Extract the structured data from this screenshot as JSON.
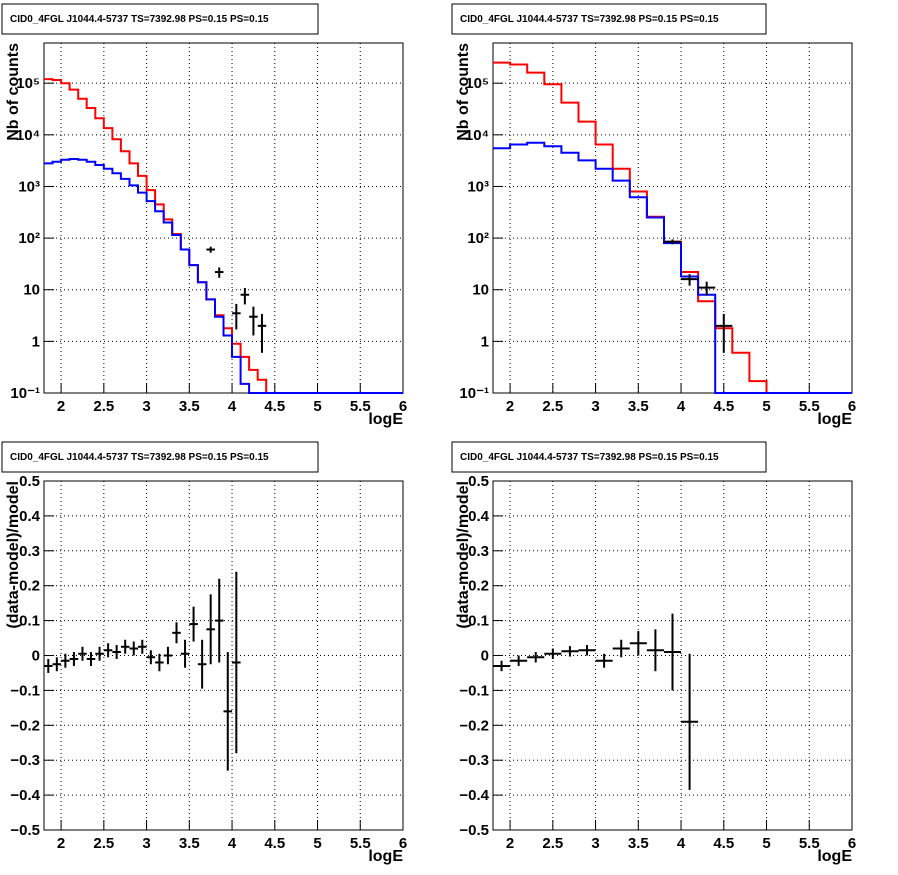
{
  "panel_title": "CID0_4FGL J1044.4-5737 TS=7392.98 PS=0.15 PS=0.15",
  "colors": {
    "model_total": "#ff0000",
    "model_source": "#0000ff",
    "data": "#000000",
    "grid": "#000000"
  },
  "chart_data": [
    {
      "type": "line",
      "title": "CID0_4FGL J1044.4-5737 TS=7392.98 PS=0.15 PS=0.15",
      "xlabel": "logE",
      "ylabel": "Nb of counts",
      "xlim": [
        1.8,
        6
      ],
      "ylim": [
        0.1,
        600000
      ],
      "yscale": "log",
      "grid": true,
      "xticks": [
        2,
        2.5,
        3,
        3.5,
        4,
        4.5,
        5,
        5.5,
        6
      ],
      "xtick_labels": [
        "2",
        "2.5",
        "3",
        "3.5",
        "4",
        "4.5",
        "5",
        "5.5",
        "6"
      ],
      "yticks": [
        0.1,
        1,
        10,
        100,
        1000,
        10000,
        100000
      ],
      "ytick_labels": [
        "10⁻¹",
        "1",
        "10",
        "10²",
        "10³",
        "10⁴",
        "10⁵"
      ],
      "bin_edges": [
        1.8,
        1.9,
        2.0,
        2.1,
        2.2,
        2.3,
        2.4,
        2.5,
        2.6,
        2.7,
        2.8,
        2.9,
        3.0,
        3.1,
        3.2,
        3.3,
        3.4,
        3.5,
        3.6,
        3.7,
        3.8,
        3.9,
        4.0,
        4.1,
        4.2,
        4.3,
        4.4,
        4.5,
        4.6,
        4.7,
        4.8,
        4.9,
        5.0,
        6.0
      ],
      "series": [
        {
          "color": "#ff0000",
          "kind": "step",
          "values": [
            120000,
            115000,
            100000,
            75000,
            50000,
            33000,
            21000,
            13500,
            8200,
            4800,
            2800,
            1600,
            850,
            450,
            230,
            120,
            60,
            30,
            14,
            6.5,
            3.2,
            1.8,
            0.9,
            0.5,
            0.28,
            0.18,
            0.1,
            0.1,
            0.1,
            0.1,
            0.1,
            0.1,
            0.1
          ]
        },
        {
          "color": "#0000ff",
          "kind": "step",
          "values": [
            2800,
            3000,
            3300,
            3400,
            3300,
            3000,
            2600,
            2200,
            1800,
            1400,
            1050,
            760,
            520,
            330,
            200,
            115,
            60,
            30,
            14,
            6.5,
            3.0,
            1.3,
            0.5,
            0.15,
            0.1,
            0.1,
            0.1,
            0.1,
            0.1,
            0.1,
            0.1,
            0.1,
            0.1
          ]
        }
      ],
      "points": [
        {
          "x": 3.75,
          "xerr": 0.05,
          "y": 60,
          "yerr": 8
        },
        {
          "x": 3.85,
          "xerr": 0.05,
          "y": 22,
          "yerr": 5
        },
        {
          "x": 4.05,
          "xerr": 0.05,
          "y": 3.5,
          "yerr": 1.8
        },
        {
          "x": 4.15,
          "xerr": 0.05,
          "y": 8,
          "yerr": 2.8
        },
        {
          "x": 4.25,
          "xerr": 0.05,
          "y": 3,
          "yerr": 1.7
        },
        {
          "x": 4.35,
          "xerr": 0.05,
          "y": 2,
          "yerr": 1.4
        }
      ]
    },
    {
      "type": "line",
      "title": "CID0_4FGL J1044.4-5737 TS=7392.98 PS=0.15 PS=0.15",
      "xlabel": "logE",
      "ylabel": "Nb of counts",
      "xlim": [
        1.8,
        6
      ],
      "ylim": [
        0.1,
        600000
      ],
      "yscale": "log",
      "grid": true,
      "xticks": [
        2,
        2.5,
        3,
        3.5,
        4,
        4.5,
        5,
        5.5,
        6
      ],
      "xtick_labels": [
        "2",
        "2.5",
        "3",
        "3.5",
        "4",
        "4.5",
        "5",
        "5.5",
        "6"
      ],
      "yticks": [
        0.1,
        1,
        10,
        100,
        1000,
        10000,
        100000
      ],
      "ytick_labels": [
        "10⁻¹",
        "1",
        "10",
        "10²",
        "10³",
        "10⁴",
        "10⁵"
      ],
      "bin_edges": [
        1.8,
        2.0,
        2.2,
        2.4,
        2.6,
        2.8,
        3.0,
        3.2,
        3.4,
        3.6,
        3.8,
        4.0,
        4.2,
        4.4,
        4.6,
        4.8,
        5.0,
        6.0
      ],
      "series": [
        {
          "color": "#ff0000",
          "kind": "step",
          "values": [
            250000,
            230000,
            160000,
            95000,
            42000,
            18000,
            6500,
            2200,
            800,
            260,
            85,
            22,
            6,
            1.8,
            0.6,
            0.17,
            0.1
          ]
        },
        {
          "color": "#0000ff",
          "kind": "step",
          "values": [
            5500,
            6500,
            7000,
            6000,
            4500,
            3200,
            2200,
            1300,
            620,
            250,
            80,
            18,
            8,
            0.1,
            0.1,
            0.1,
            0.1
          ]
        }
      ],
      "points": [
        {
          "x": 3.9,
          "xerr": 0.1,
          "y": 85,
          "yerr": 9
        },
        {
          "x": 4.1,
          "xerr": 0.1,
          "y": 16,
          "yerr": 4
        },
        {
          "x": 4.3,
          "xerr": 0.1,
          "y": 11,
          "yerr": 3.3
        },
        {
          "x": 4.5,
          "xerr": 0.1,
          "y": 2,
          "yerr": 1.4
        }
      ]
    },
    {
      "type": "scatter",
      "title": "CID0_4FGL J1044.4-5737 TS=7392.98 PS=0.15 PS=0.15",
      "xlabel": "logE",
      "ylabel": "(data-model)/model",
      "xlim": [
        1.8,
        6
      ],
      "ylim": [
        -0.5,
        0.5
      ],
      "grid": true,
      "xticks": [
        2,
        2.5,
        3,
        3.5,
        4,
        4.5,
        5,
        5.5,
        6
      ],
      "xtick_labels": [
        "2",
        "2.5",
        "3",
        "3.5",
        "4",
        "4.5",
        "5",
        "5.5",
        "6"
      ],
      "yticks": [
        -0.5,
        -0.4,
        -0.3,
        -0.2,
        -0.1,
        0,
        0.1,
        0.2,
        0.3,
        0.4,
        0.5
      ],
      "ytick_labels": [
        "−0.5",
        "−0.4",
        "−0.3",
        "−0.2",
        "−0.1",
        "0",
        "0.1",
        "0.2",
        "0.3",
        "0.4",
        "0.5"
      ],
      "points": [
        {
          "x": 1.85,
          "xerr": 0.05,
          "y": -0.03,
          "yerr": 0.02
        },
        {
          "x": 1.95,
          "xerr": 0.05,
          "y": -0.025,
          "yerr": 0.02
        },
        {
          "x": 2.05,
          "xerr": 0.05,
          "y": -0.015,
          "yerr": 0.02
        },
        {
          "x": 2.15,
          "xerr": 0.05,
          "y": -0.01,
          "yerr": 0.02
        },
        {
          "x": 2.25,
          "xerr": 0.05,
          "y": 0.005,
          "yerr": 0.02
        },
        {
          "x": 2.35,
          "xerr": 0.05,
          "y": -0.01,
          "yerr": 0.02
        },
        {
          "x": 2.45,
          "xerr": 0.05,
          "y": 0.005,
          "yerr": 0.02
        },
        {
          "x": 2.55,
          "xerr": 0.05,
          "y": 0.015,
          "yerr": 0.02
        },
        {
          "x": 2.65,
          "xerr": 0.05,
          "y": 0.01,
          "yerr": 0.02
        },
        {
          "x": 2.75,
          "xerr": 0.05,
          "y": 0.025,
          "yerr": 0.02
        },
        {
          "x": 2.85,
          "xerr": 0.05,
          "y": 0.02,
          "yerr": 0.02
        },
        {
          "x": 2.95,
          "xerr": 0.05,
          "y": 0.025,
          "yerr": 0.02
        },
        {
          "x": 3.05,
          "xerr": 0.05,
          "y": -0.005,
          "yerr": 0.02
        },
        {
          "x": 3.15,
          "xerr": 0.05,
          "y": -0.02,
          "yerr": 0.025
        },
        {
          "x": 3.25,
          "xerr": 0.05,
          "y": 0,
          "yerr": 0.025
        },
        {
          "x": 3.35,
          "xerr": 0.05,
          "y": 0.065,
          "yerr": 0.03
        },
        {
          "x": 3.45,
          "xerr": 0.05,
          "y": 0.005,
          "yerr": 0.04
        },
        {
          "x": 3.55,
          "xerr": 0.05,
          "y": 0.09,
          "yerr": 0.05
        },
        {
          "x": 3.65,
          "xerr": 0.05,
          "y": -0.025,
          "yerr": 0.07
        },
        {
          "x": 3.75,
          "xerr": 0.05,
          "y": 0.075,
          "yerr": 0.1
        },
        {
          "x": 3.85,
          "xerr": 0.05,
          "y": 0.1,
          "yerr": 0.12
        },
        {
          "x": 3.95,
          "xerr": 0.05,
          "y": -0.16,
          "yerr": 0.17
        },
        {
          "x": 4.05,
          "xerr": 0.05,
          "y": -0.02,
          "yerr": 0.26
        }
      ]
    },
    {
      "type": "scatter",
      "title": "CID0_4FGL J1044.4-5737 TS=7392.98 PS=0.15 PS=0.15",
      "xlabel": "logE",
      "ylabel": "(data-model)/model",
      "xlim": [
        1.8,
        6
      ],
      "ylim": [
        -0.5,
        0.5
      ],
      "grid": true,
      "xticks": [
        2,
        2.5,
        3,
        3.5,
        4,
        4.5,
        5,
        5.5,
        6
      ],
      "xtick_labels": [
        "2",
        "2.5",
        "3",
        "3.5",
        "4",
        "4.5",
        "5",
        "5.5",
        "6"
      ],
      "yticks": [
        -0.5,
        -0.4,
        -0.3,
        -0.2,
        -0.1,
        0,
        0.1,
        0.2,
        0.3,
        0.4,
        0.5
      ],
      "ytick_labels": [
        "−0.5",
        "−0.4",
        "−0.3",
        "−0.2",
        "−0.1",
        "0",
        "0.1",
        "0.2",
        "0.3",
        "0.4",
        "0.5"
      ],
      "points": [
        {
          "x": 1.9,
          "xerr": 0.1,
          "y": -0.03,
          "yerr": 0.015
        },
        {
          "x": 2.1,
          "xerr": 0.1,
          "y": -0.015,
          "yerr": 0.015
        },
        {
          "x": 2.3,
          "xerr": 0.1,
          "y": -0.005,
          "yerr": 0.015
        },
        {
          "x": 2.5,
          "xerr": 0.1,
          "y": 0.005,
          "yerr": 0.015
        },
        {
          "x": 2.7,
          "xerr": 0.1,
          "y": 0.012,
          "yerr": 0.015
        },
        {
          "x": 2.9,
          "xerr": 0.1,
          "y": 0.015,
          "yerr": 0.015
        },
        {
          "x": 3.1,
          "xerr": 0.1,
          "y": -0.015,
          "yerr": 0.02
        },
        {
          "x": 3.3,
          "xerr": 0.1,
          "y": 0.02,
          "yerr": 0.025
        },
        {
          "x": 3.5,
          "xerr": 0.1,
          "y": 0.035,
          "yerr": 0.035
        },
        {
          "x": 3.7,
          "xerr": 0.1,
          "y": 0.015,
          "yerr": 0.06
        },
        {
          "x": 3.9,
          "xerr": 0.1,
          "y": 0.01,
          "yerr": 0.11
        },
        {
          "x": 4.1,
          "xerr": 0.1,
          "y": -0.19,
          "yerr": 0.195
        }
      ]
    }
  ]
}
